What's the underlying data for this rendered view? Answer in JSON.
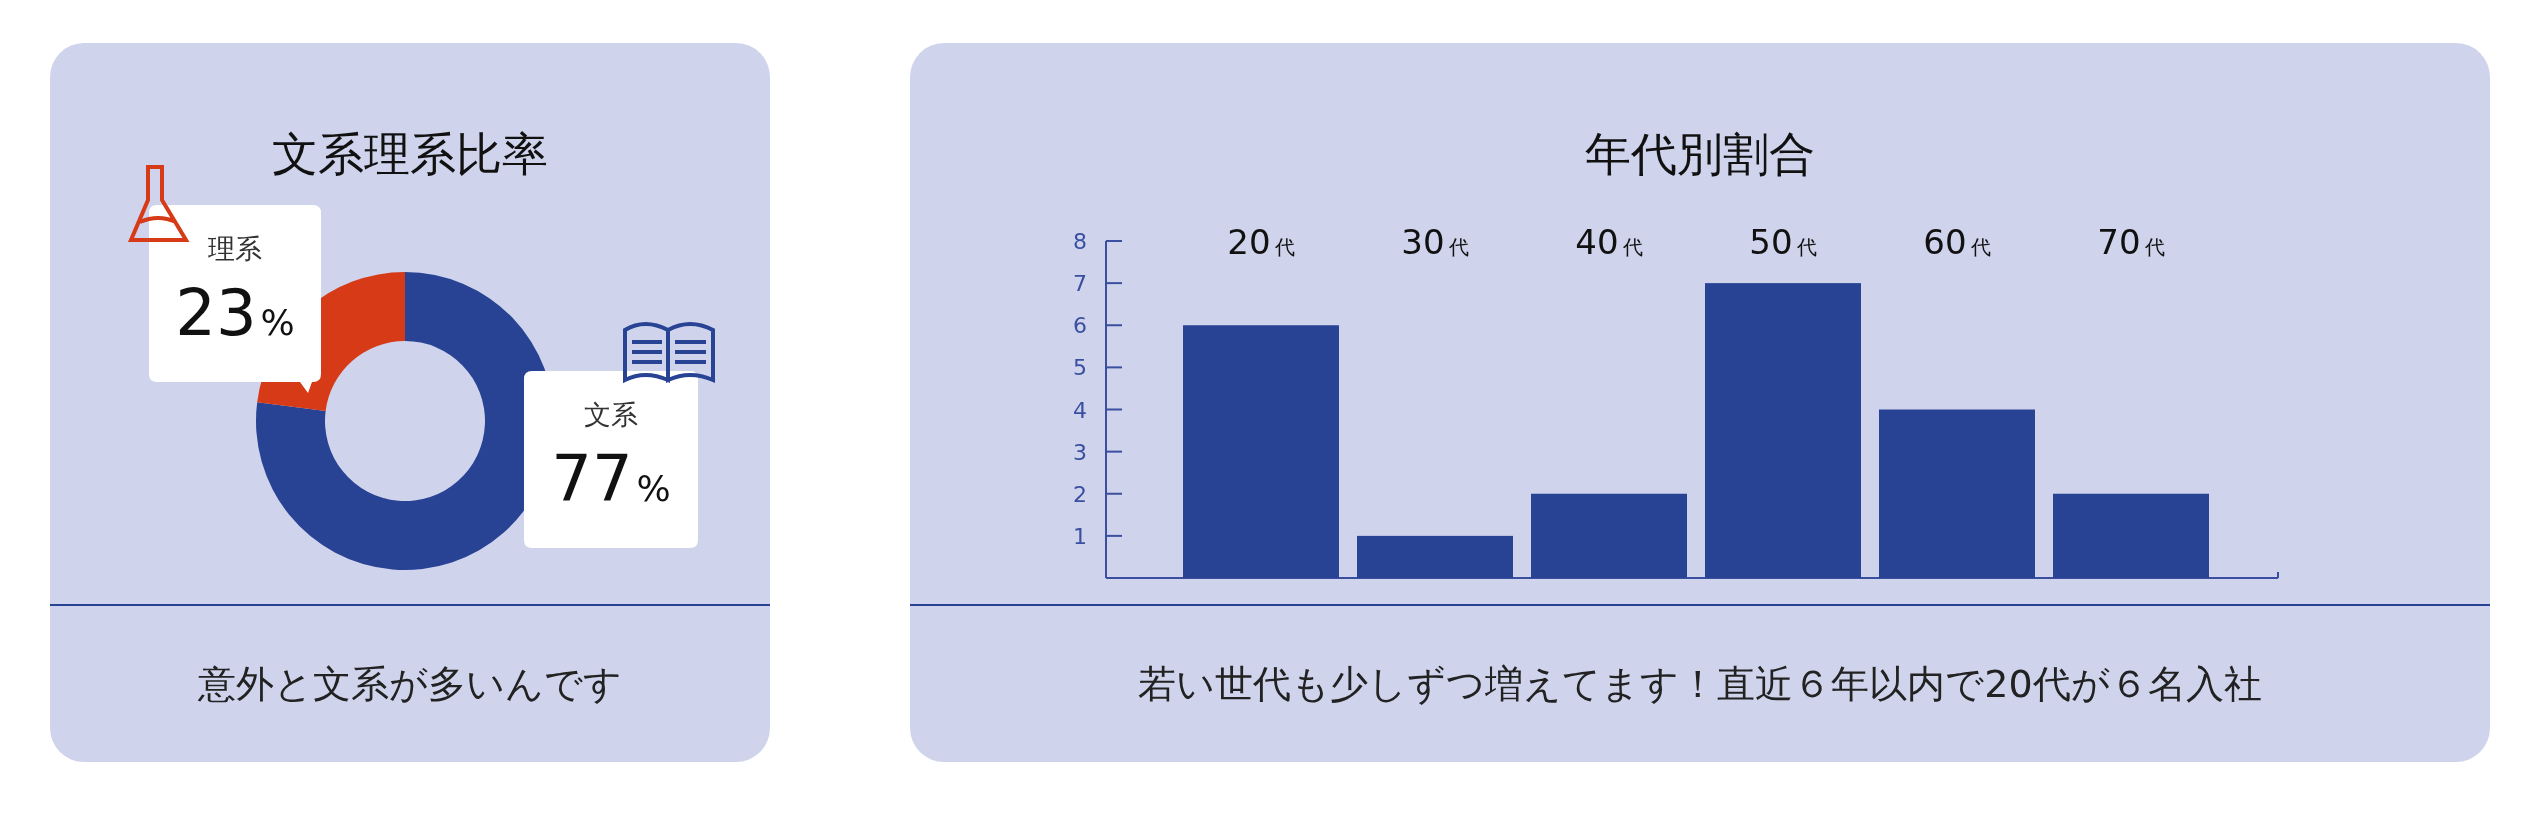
{
  "chart_data": [
    {
      "type": "donut",
      "title": "文系理系比率",
      "categories": [
        "文系",
        "理系"
      ],
      "values": [
        77,
        23
      ],
      "colors": [
        "#284294",
        "#d63a17"
      ],
      "value_labels": [
        "77%",
        "23%"
      ],
      "annotations": [
        "意外と文系が多いんです"
      ]
    },
    {
      "type": "bar",
      "title": "年代別割合",
      "categories": [
        "20代",
        "30代",
        "40代",
        "50代",
        "60代",
        "70代"
      ],
      "values": [
        6,
        1,
        2,
        7,
        4,
        2
      ],
      "color": "#284294",
      "ylim": [
        0,
        8
      ],
      "yticks": [
        1,
        2,
        3,
        4,
        5,
        6,
        7,
        8
      ],
      "annotations": [
        "若い世代も少しずつ増えてます！直近６年以内で20代が６名入社"
      ]
    }
  ]
}
